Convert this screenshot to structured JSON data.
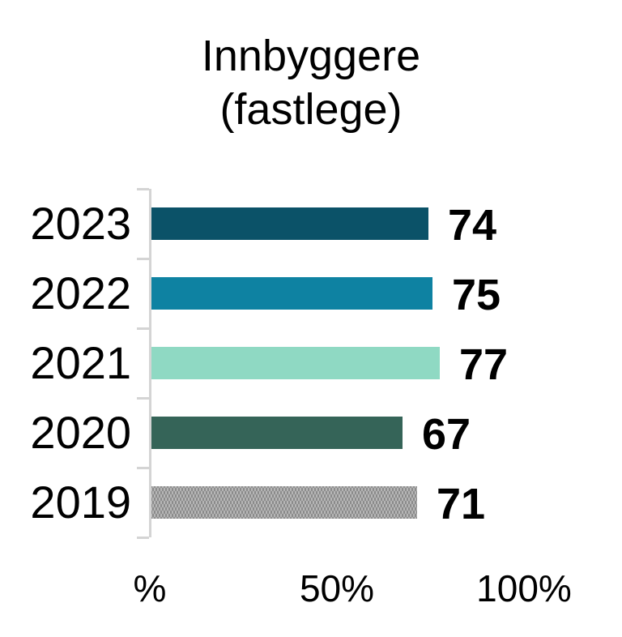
{
  "title": {
    "line1": "Innbyggere",
    "line2": "(fastlege)"
  },
  "chart_data": {
    "type": "bar",
    "orientation": "horizontal",
    "title": "Innbyggere (fastlege)",
    "categories": [
      "2023",
      "2022",
      "2021",
      "2020",
      "2019"
    ],
    "values": [
      74,
      75,
      77,
      67,
      71
    ],
    "value_labels": [
      "74",
      "75",
      "77",
      "67",
      "71"
    ],
    "bar_colors": [
      "#0b5268",
      "#0e82a2",
      "#8fd9c3",
      "#356458",
      "#b7b7b7"
    ],
    "bar_patterns": [
      null,
      null,
      null,
      null,
      "dots"
    ],
    "xlabel": "",
    "ylabel": "",
    "xlim": [
      0,
      100
    ],
    "x_ticks": [
      {
        "label": "%",
        "percent": 0
      },
      {
        "label": "50%",
        "percent": 50
      },
      {
        "label": "100%",
        "percent": 100
      }
    ],
    "grid": false,
    "legend": false,
    "axis_color": "#d4d4d4",
    "text_color": "#000000",
    "background_color": "#ffffff"
  }
}
